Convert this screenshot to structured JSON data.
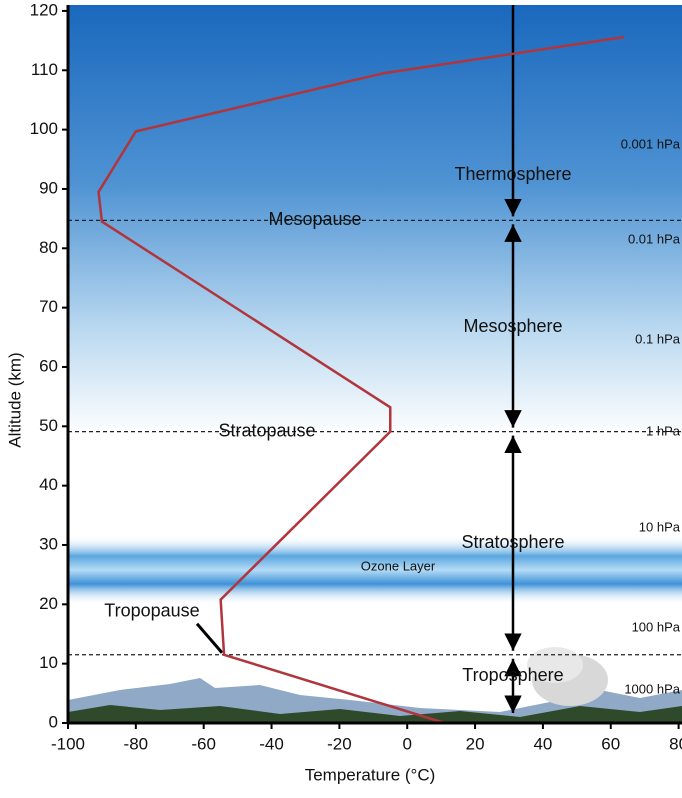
{
  "chart_data": {
    "type": "line",
    "x_label": "Temperature (°C)",
    "y_label": "Altitude (km)",
    "xlim": [
      -100,
      81
    ],
    "ylim": [
      0,
      121
    ],
    "xticks": [
      -100,
      -80,
      -60,
      -40,
      -20,
      0,
      20,
      40,
      60,
      80
    ],
    "yticks": [
      0,
      10,
      20,
      30,
      40,
      50,
      60,
      70,
      80,
      90,
      100,
      110,
      120
    ],
    "series": [
      {
        "name": "Temperature profile",
        "color": "#b0353c",
        "x": [
          11,
          -54,
          -55,
          -5,
          -5,
          -90,
          -91,
          -80,
          -7,
          64
        ],
        "values": [
          0,
          11.5,
          20.8,
          49.1,
          53.2,
          84.5,
          89.5,
          99.7,
          109.5,
          115.6
        ]
      }
    ],
    "reference_lines": [
      {
        "label": "Mesopause",
        "value": 84.7
      },
      {
        "label": "Stratopause",
        "value": 49.1
      },
      {
        "label": "Tropopause",
        "value": 11.5
      }
    ],
    "layers": [
      "Thermosphere",
      "Mesosphere",
      "Stratosphere",
      "Troposphere"
    ],
    "ozone_label": "Ozone Layer",
    "pressure_labels": [
      "0.001 hPa",
      "0.01 hPa",
      "0.1 hPa",
      "1 hPa",
      "10 hPa",
      "100 hPa",
      "1000 hPa"
    ]
  }
}
